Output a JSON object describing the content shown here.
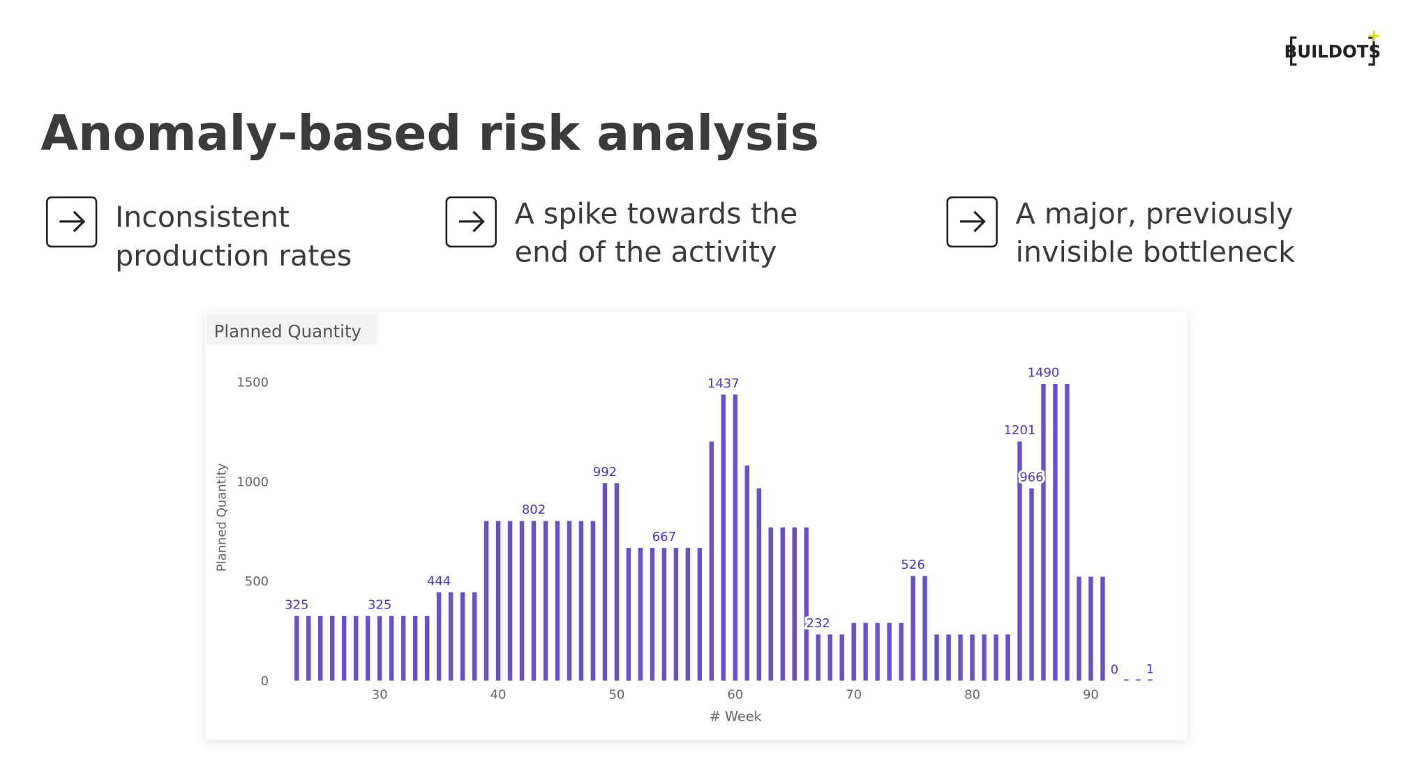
{
  "header": {
    "title": "Anomaly-based risk analysis",
    "logo": "BUILDOTS"
  },
  "bullets": [
    {
      "lines": [
        "Inconsistent",
        "production rates"
      ]
    },
    {
      "lines": [
        "A spike towards the",
        "end of the activity"
      ]
    },
    {
      "lines": [
        "A major, previously",
        "invisible bottleneck"
      ]
    }
  ],
  "chart_data": {
    "type": "bar",
    "title": "Planned Quantity",
    "x_label": "# Week",
    "y_label": "Planned Quantity",
    "color": "#6a4fd0",
    "x": [
      23,
      24,
      25,
      26,
      27,
      28,
      29,
      30,
      31,
      32,
      33,
      34,
      35,
      36,
      37,
      38,
      39,
      40,
      41,
      42,
      43,
      44,
      45,
      46,
      47,
      48,
      49,
      50,
      51,
      52,
      53,
      54,
      55,
      56,
      57,
      58,
      59,
      60,
      61,
      62,
      63,
      64,
      65,
      66,
      67,
      68,
      69,
      70,
      71,
      72,
      73,
      74,
      75,
      76,
      77,
      78,
      79,
      80,
      81,
      82,
      83,
      84,
      85,
      86,
      87,
      88,
      89,
      90,
      91,
      92,
      93,
      94,
      95
    ],
    "values": [
      325,
      325,
      325,
      325,
      325,
      325,
      325,
      325,
      325,
      325,
      325,
      325,
      444,
      444,
      444,
      444,
      802,
      802,
      802,
      802,
      802,
      802,
      802,
      802,
      802,
      802,
      992,
      992,
      667,
      667,
      667,
      667,
      667,
      667,
      667,
      1201,
      1437,
      1437,
      1081,
      966,
      770,
      770,
      770,
      770,
      232,
      232,
      232,
      290,
      290,
      290,
      290,
      290,
      526,
      526,
      232,
      232,
      232,
      232,
      232,
      232,
      232,
      1201,
      966,
      1490,
      1490,
      1490,
      522,
      522,
      522,
      0,
      1,
      1,
      1
    ],
    "value_labels": [
      "325",
      null,
      null,
      null,
      null,
      null,
      null,
      "325",
      null,
      null,
      null,
      null,
      "444",
      null,
      null,
      null,
      null,
      null,
      null,
      null,
      "802",
      null,
      null,
      null,
      null,
      null,
      "992",
      null,
      null,
      null,
      null,
      "667",
      null,
      null,
      null,
      null,
      "1437",
      null,
      null,
      null,
      null,
      null,
      null,
      null,
      "232",
      null,
      null,
      null,
      null,
      null,
      null,
      null,
      "526",
      null,
      null,
      null,
      null,
      null,
      null,
      null,
      null,
      "1201",
      "966",
      "1490",
      null,
      null,
      null,
      null,
      null,
      "0",
      null,
      null,
      "1"
    ],
    "xlim": [
      22,
      96
    ],
    "xticks": [
      30,
      40,
      50,
      60,
      70,
      80,
      90
    ],
    "ylim": [
      0,
      1500
    ],
    "yticks": [
      0,
      500,
      1000,
      1500
    ]
  }
}
